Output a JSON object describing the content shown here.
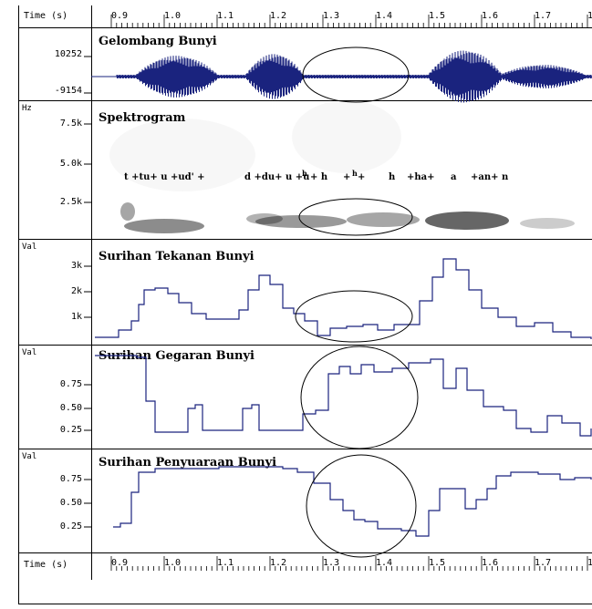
{
  "time_ruler": {
    "label": "Time (s)",
    "ticks": [
      "0.9",
      "1.0",
      "1.1",
      "1.2",
      "1.3",
      "1.4",
      "1.5",
      "1.6",
      "1.7",
      "1."
    ]
  },
  "panels": {
    "waveform": {
      "title": "Gelombang Bunyi",
      "labels": [
        "10252",
        "-9154"
      ]
    },
    "spectrogram": {
      "title": "Spektrogram",
      "unit": "Hz",
      "labels": [
        "7.5k",
        "5.0k",
        "2.5k"
      ],
      "segments": [
        "t +tu+ u +ud' +",
        "d +du+ u +u",
        "h",
        "+ h",
        "+",
        "h",
        "+",
        "h",
        "+ha+",
        "a",
        "+an+ n"
      ]
    },
    "pressure": {
      "title": "Surihan Tekanan Bunyi",
      "unit": "Val",
      "labels": [
        "3k",
        "2k",
        "1k"
      ]
    },
    "jitter": {
      "title": "Surihan Gegaran Bunyi",
      "unit": "Val",
      "labels": [
        "0.75",
        "0.50",
        "0.25"
      ]
    },
    "voicing": {
      "title": "Surihan Penyuaraan Bunyi",
      "unit": "Val",
      "labels": [
        "0.75",
        "0.50",
        "0.25"
      ]
    }
  },
  "colors": {
    "waveform": "#1a237e",
    "trace": "#1a237e",
    "frame": "#000000"
  }
}
